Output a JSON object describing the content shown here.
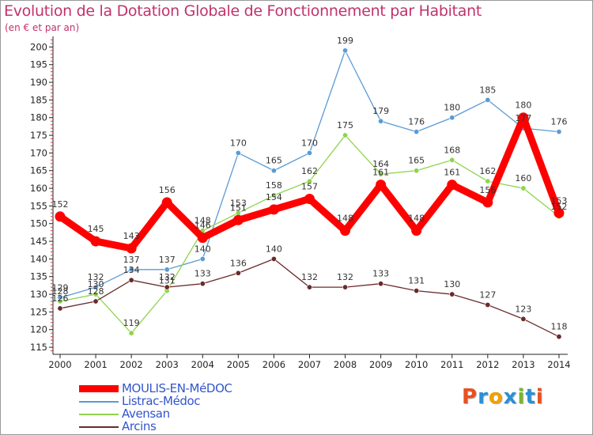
{
  "title": "Evolution de la Dotation Globale de Fonctionnement par Habitant",
  "subtitle": "(en € et par an)",
  "logo": {
    "text": "Proxiti",
    "colors": [
      "#e8501f",
      "#2a8fd6",
      "#f0a000",
      "#2a8fd6",
      "#78b62c",
      "#2a8fd6",
      "#e8501f"
    ]
  },
  "chart_data": {
    "type": "line",
    "title": "Evolution de la Dotation Globale de Fonctionnement par Habitant",
    "subtitle": "(en € et par an)",
    "x": [
      "2000",
      "2001",
      "2002",
      "2003",
      "2004",
      "2005",
      "2006",
      "2007",
      "2008",
      "2009",
      "2010",
      "2011",
      "2012",
      "2013",
      "2014"
    ],
    "yticks": [
      "115",
      "120",
      "125",
      "130",
      "135",
      "140",
      "145",
      "150",
      "155",
      "160",
      "165",
      "170",
      "175",
      "180",
      "185",
      "190",
      "195",
      "200"
    ],
    "ylim": [
      113,
      203
    ],
    "grid": false,
    "legend_position": "bottom-left",
    "series": [
      {
        "name": "Listrac-Médoc",
        "color": "#5b9bd5",
        "values": [
          129,
          132,
          137,
          137,
          140,
          170,
          165,
          170,
          199,
          179,
          176,
          180,
          185,
          177,
          176
        ],
        "labels": [
          "129",
          "132",
          "137",
          "137",
          "140",
          "170",
          "165",
          "170",
          "199",
          "179",
          "176",
          "180",
          "185",
          "177",
          "176"
        ]
      },
      {
        "name": "Avensan",
        "color": "#8fd44c",
        "values": [
          128,
          130,
          119,
          131,
          148,
          153,
          158,
          162,
          175,
          164,
          165,
          168,
          162,
          160,
          152
        ],
        "labels": [
          "128",
          "130",
          "119",
          "131",
          "148",
          "153",
          "158",
          "162",
          "175",
          "164",
          "165",
          "168",
          "162",
          "160",
          "152"
        ]
      },
      {
        "name": "Arcins",
        "color": "#6b2a2a",
        "values": [
          126,
          128,
          134,
          132,
          133,
          136,
          140,
          132,
          132,
          133,
          131,
          130,
          127,
          123,
          118
        ],
        "labels": [
          "126",
          "128",
          "134",
          "132",
          "133",
          "136",
          "140",
          "132",
          "132",
          "133",
          "131",
          "130",
          "127",
          "123",
          "118"
        ]
      },
      {
        "name": "MOULIS-EN-MéDOC",
        "color": "#ff0000",
        "values": [
          152,
          145,
          143,
          156,
          146,
          151,
          154,
          157,
          148,
          161,
          148,
          161,
          156,
          180,
          153
        ],
        "labels": [
          "152",
          "145",
          "143",
          "156",
          "146",
          "151",
          "154",
          "157",
          "148",
          "161",
          "148",
          "161",
          "156",
          "180",
          "153"
        ]
      }
    ]
  }
}
